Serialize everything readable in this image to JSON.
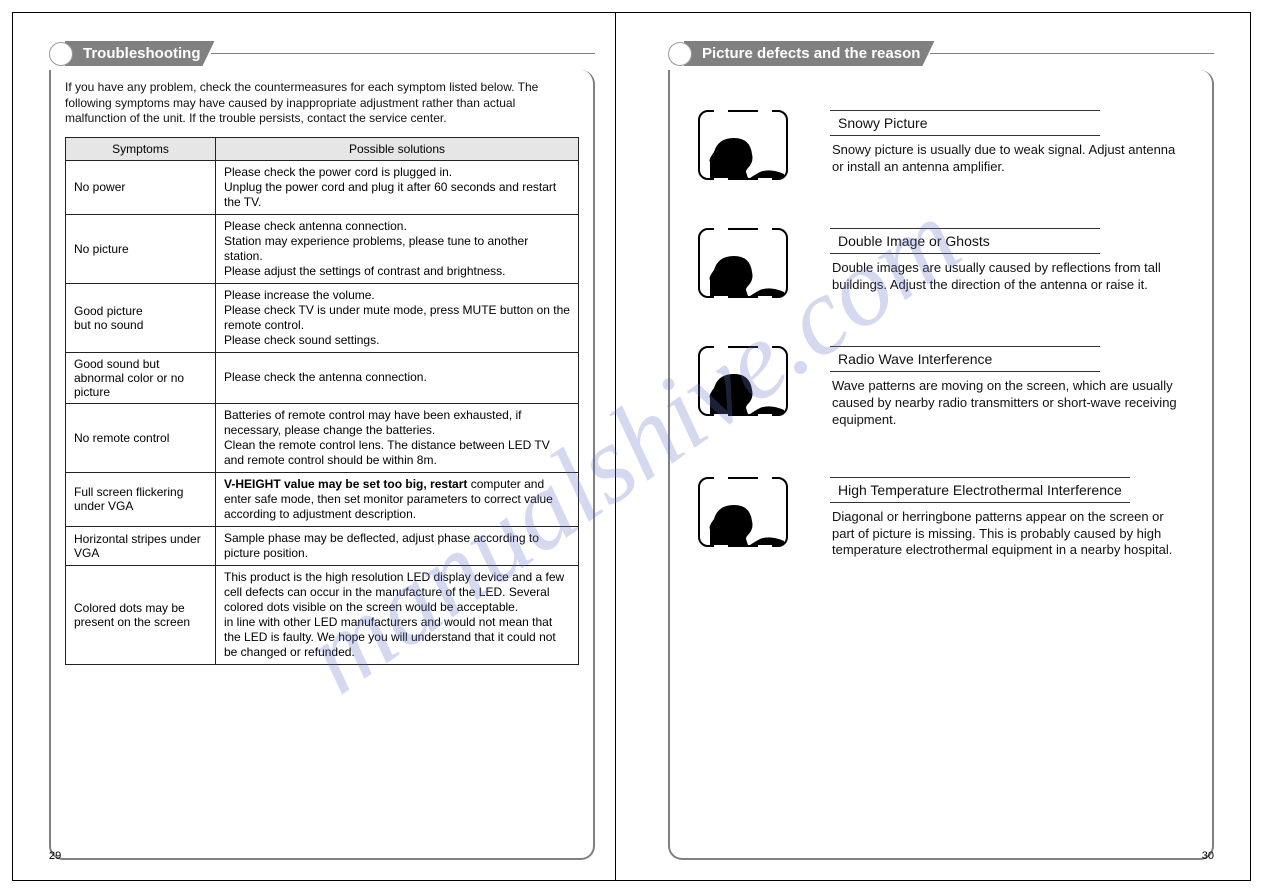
{
  "watermark_text": "manualshive.com",
  "left": {
    "title": "Troubleshooting",
    "intro": "If you have any problem, check the countermeasures for each symptom listed below. The following symptoms may have caused by inappropriate adjustment rather than actual malfunction of the unit. If the trouble persists, contact the service center.",
    "table": {
      "header_symptom": "Symptoms",
      "header_solution": "Possible solutions",
      "rows": [
        {
          "symptom": "No power",
          "solution": "Please check the power cord is plugged in.\nUnplug the power cord and plug it after 60 seconds and restart the TV."
        },
        {
          "symptom": "No picture",
          "solution": "Please check antenna connection.\nStation may experience problems, please tune to another station.\nPlease adjust the settings of contrast and brightness."
        },
        {
          "symptom": "Good picture\nbut no sound",
          "solution": "Please increase the volume.\nPlease check TV is under mute mode, press MUTE button on the remote control.\nPlease check sound  settings."
        },
        {
          "symptom": "Good sound but abnormal color or no picture",
          "solution": "Please check the antenna connection."
        },
        {
          "symptom": "No remote control",
          "solution": "Batteries of remote control may have  been exhausted, if necessary, please change the batteries.\nClean the remote control lens. The distance between LED TV and remote control should be within 8m."
        },
        {
          "symptom": "Full screen flickering under VGA",
          "solution": "V-HEIGHT value may be set too big, restart computer and enter safe mode, then set monitor parameters to correct value according to adjustment description.",
          "bold_prefix": "V-HEIGHT value may be set too big, restart"
        },
        {
          "symptom": "Horizontal stripes under VGA",
          "solution": "Sample phase may be deflected, adjust phase according to picture position."
        },
        {
          "symptom": "Colored dots may be present on the screen",
          "solution": "This product is the high resolution LED display device and a few cell defects can occur in the manufacture of the LED. Several colored dots visible on the screen would be acceptable.\nin line with other LED manufacturers and would not mean that the LED is faulty. We hope you will understand that it could not be changed or refunded."
        }
      ]
    },
    "page_number": "29"
  },
  "right": {
    "title": "Picture defects and the reason",
    "defects": [
      {
        "title": "Snowy Picture",
        "desc": "Snowy picture is usually due to weak signal. Adjust antenna or install an antenna amplifier."
      },
      {
        "title": "Double Image or Ghosts",
        "desc": "Double images are usually caused by reflections from tall buildings. Adjust the direction of the antenna or raise it."
      },
      {
        "title": "Radio Wave Interference",
        "desc": "Wave patterns are moving on the screen, which are usually caused by nearby radio transmitters or short-wave receiving equipment."
      },
      {
        "title": "High Temperature Electrothermal Interference",
        "desc": "Diagonal or herringbone patterns appear on the screen or part of picture is missing. This is probably caused by high temperature electrothermal equipment in a nearby hospital."
      }
    ],
    "page_number": "30"
  }
}
